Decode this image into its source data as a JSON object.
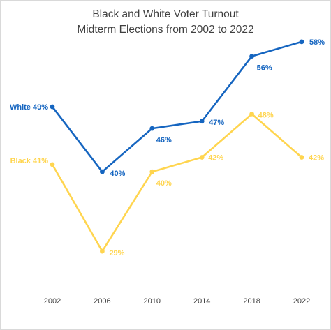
{
  "chart_data": {
    "type": "line",
    "title": "Black and White Voter Turnout",
    "subtitle": "Midterm Elections from 2002 to 2022",
    "categories": [
      "2002",
      "2006",
      "2010",
      "2014",
      "2018",
      "2022"
    ],
    "ylim": [
      20,
      60
    ],
    "grid": false,
    "legend": "none",
    "series": [
      {
        "name": "White",
        "color": "#1565c0",
        "values": [
          49,
          40,
          46,
          47,
          56,
          58
        ],
        "labels": [
          "White 49%",
          "40%",
          "46%",
          "47%",
          "56%",
          "58%"
        ]
      },
      {
        "name": "Black",
        "color": "#ffd54f",
        "values": [
          41,
          29,
          40,
          42,
          48,
          42
        ],
        "labels": [
          "Black 41%",
          "29%",
          "40%",
          "42%",
          "48%",
          "42%"
        ]
      }
    ]
  }
}
